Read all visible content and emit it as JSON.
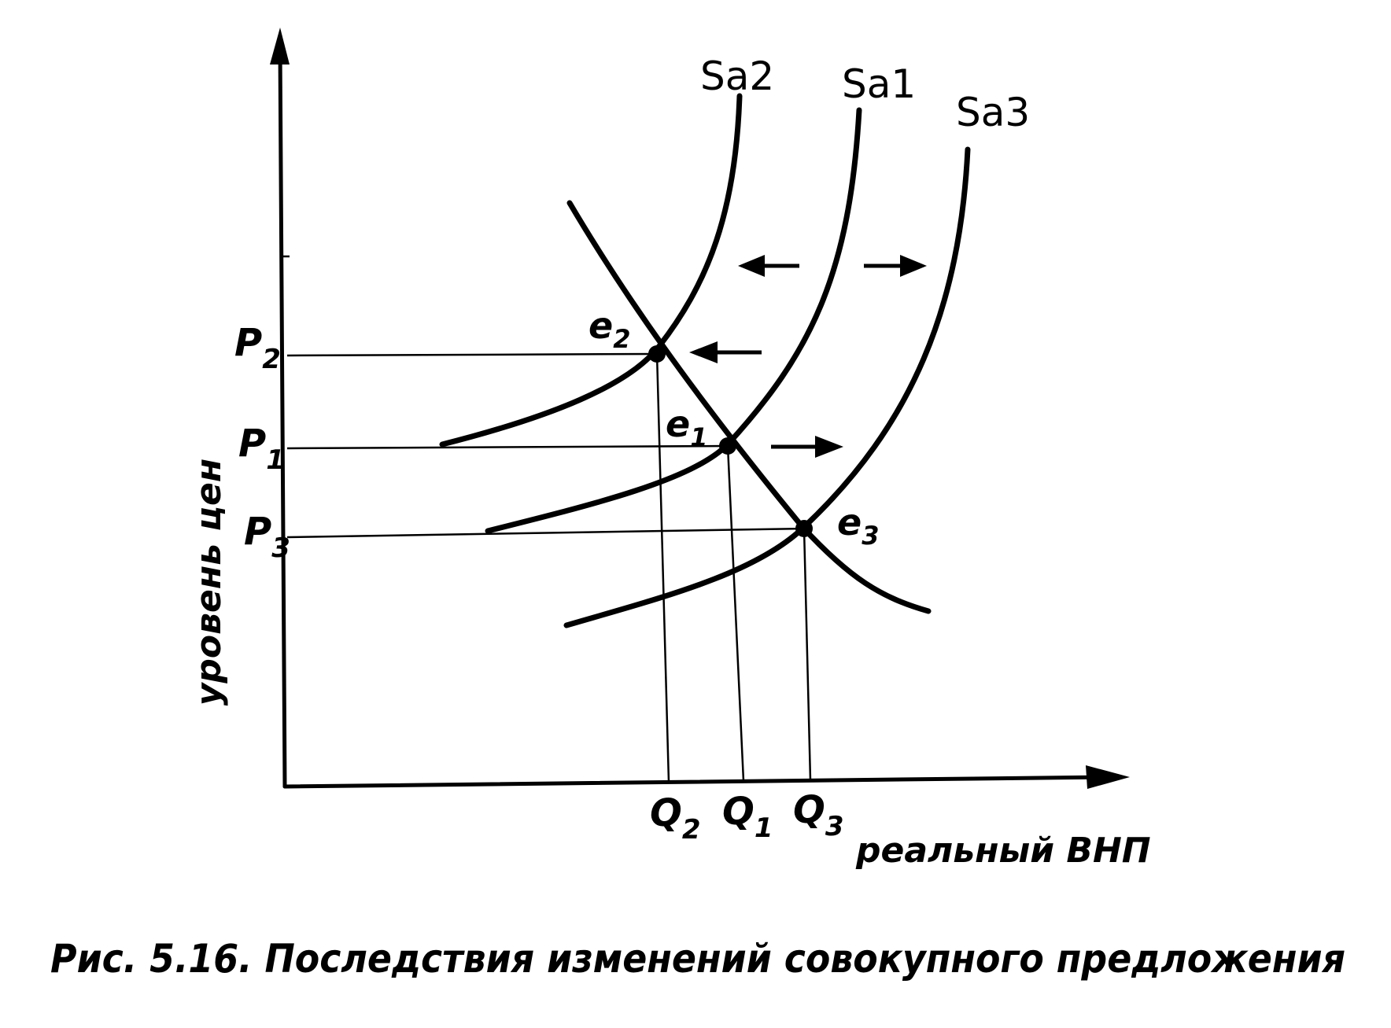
{
  "curves": {
    "supply_2": "Sa2",
    "supply_1": "Sa1",
    "supply_3": "Sa3"
  },
  "equilibria": [
    {
      "base": "e",
      "sub": "2"
    },
    {
      "base": "e",
      "sub": "1"
    },
    {
      "base": "e",
      "sub": "3"
    }
  ],
  "price_levels": [
    {
      "base": "P",
      "sub": "2"
    },
    {
      "base": "P",
      "sub": "1"
    },
    {
      "base": "P",
      "sub": "3"
    }
  ],
  "quantities": [
    {
      "base": "Q",
      "sub": "2"
    },
    {
      "base": "Q",
      "sub": "1"
    },
    {
      "base": "Q",
      "sub": "3"
    }
  ],
  "axes": {
    "y_label": "уровень цен",
    "x_label": "реальный ВНП"
  },
  "caption": "Рис. 5.16. Последствия изменений совокупного предложения",
  "colors": {
    "ink": "#000000",
    "background": "#ffffff"
  }
}
